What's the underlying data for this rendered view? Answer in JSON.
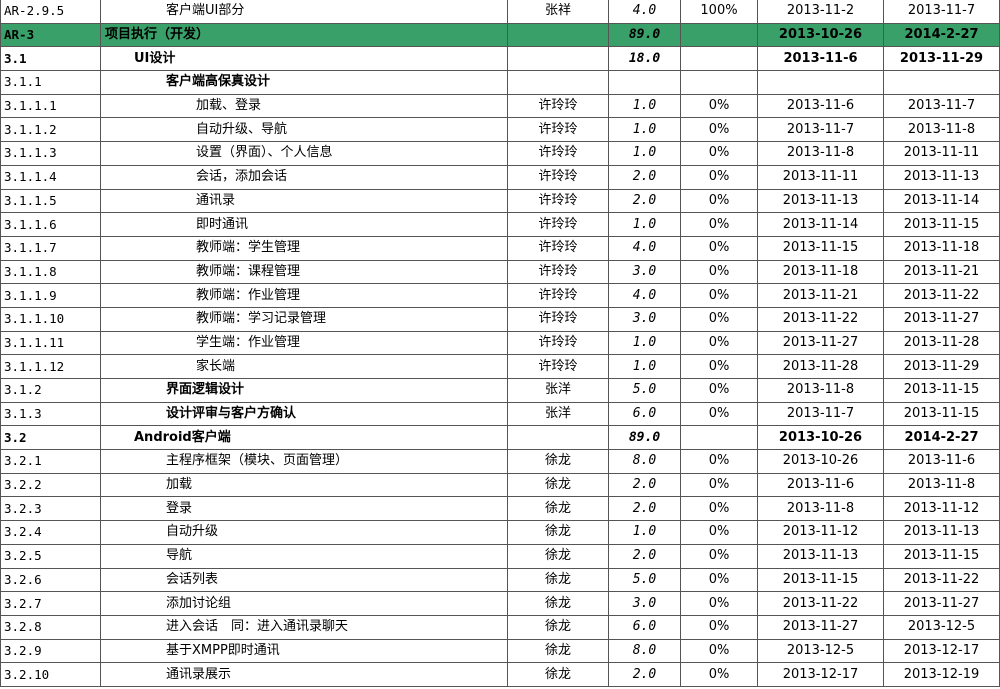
{
  "colors": {
    "summary_row": "#38a068"
  },
  "rows": [
    {
      "id": "AR-2.9.5",
      "task": "客户端UI部分",
      "level": 2,
      "owner": "张祥",
      "duration": "4.0",
      "progress": "100%",
      "start": "2013-11-2",
      "end": "2013-11-7"
    },
    {
      "id": "AR-3",
      "task": "项目执行（开发）",
      "level": 0,
      "owner": "",
      "duration": "89.0",
      "progress": "",
      "start": "2013-10-26",
      "end": "2014-2-27",
      "bold": true,
      "green": true
    },
    {
      "id": "3.1",
      "task": "UI设计",
      "level": 1,
      "owner": "",
      "duration": "18.0",
      "progress": "",
      "start": "2013-11-6",
      "end": "2013-11-29",
      "bold": true
    },
    {
      "id": "3.1.1",
      "task": "客户端高保真设计",
      "level": 2,
      "owner": "",
      "duration": "",
      "progress": "",
      "start": "",
      "end": "",
      "boldtask": true
    },
    {
      "id": "3.1.1.1",
      "task": "加载、登录",
      "level": 3,
      "owner": "许玲玲",
      "duration": "1.0",
      "progress": "0%",
      "start": "2013-11-6",
      "end": "2013-11-7"
    },
    {
      "id": "3.1.1.2",
      "task": "自动升级、导航",
      "level": 3,
      "owner": "许玲玲",
      "duration": "1.0",
      "progress": "0%",
      "start": "2013-11-7",
      "end": "2013-11-8"
    },
    {
      "id": "3.1.1.3",
      "task": "设置（界面）、个人信息",
      "level": 3,
      "owner": "许玲玲",
      "duration": "1.0",
      "progress": "0%",
      "start": "2013-11-8",
      "end": "2013-11-11"
    },
    {
      "id": "3.1.1.4",
      "task": "会话，添加会话",
      "level": 3,
      "owner": "许玲玲",
      "duration": "2.0",
      "progress": "0%",
      "start": "2013-11-11",
      "end": "2013-11-13"
    },
    {
      "id": "3.1.1.5",
      "task": "通讯录",
      "level": 3,
      "owner": "许玲玲",
      "duration": "2.0",
      "progress": "0%",
      "start": "2013-11-13",
      "end": "2013-11-14"
    },
    {
      "id": "3.1.1.6",
      "task": "即时通讯",
      "level": 3,
      "owner": "许玲玲",
      "duration": "1.0",
      "progress": "0%",
      "start": "2013-11-14",
      "end": "2013-11-15"
    },
    {
      "id": "3.1.1.7",
      "task": "教师端：学生管理",
      "level": 3,
      "owner": "许玲玲",
      "duration": "4.0",
      "progress": "0%",
      "start": "2013-11-15",
      "end": "2013-11-18"
    },
    {
      "id": "3.1.1.8",
      "task": "教师端：课程管理",
      "level": 3,
      "owner": "许玲玲",
      "duration": "3.0",
      "progress": "0%",
      "start": "2013-11-18",
      "end": "2013-11-21"
    },
    {
      "id": "3.1.1.9",
      "task": "教师端：作业管理",
      "level": 3,
      "owner": "许玲玲",
      "duration": "4.0",
      "progress": "0%",
      "start": "2013-11-21",
      "end": "2013-11-22"
    },
    {
      "id": "3.1.1.10",
      "task": "教师端：学习记录管理",
      "level": 3,
      "owner": "许玲玲",
      "duration": "3.0",
      "progress": "0%",
      "start": "2013-11-22",
      "end": "2013-11-27"
    },
    {
      "id": "3.1.1.11",
      "task": "学生端：作业管理",
      "level": 3,
      "owner": "许玲玲",
      "duration": "1.0",
      "progress": "0%",
      "start": "2013-11-27",
      "end": "2013-11-28"
    },
    {
      "id": "3.1.1.12",
      "task": "家长端",
      "level": 3,
      "owner": "许玲玲",
      "duration": "1.0",
      "progress": "0%",
      "start": "2013-11-28",
      "end": "2013-11-29"
    },
    {
      "id": "3.1.2",
      "task": "界面逻辑设计",
      "level": 2,
      "owner": "张洋",
      "duration": "5.0",
      "progress": "0%",
      "start": "2013-11-8",
      "end": "2013-11-15",
      "boldtask": true
    },
    {
      "id": "3.1.3",
      "task": "设计评审与客户方确认",
      "level": 2,
      "owner": "张洋",
      "duration": "6.0",
      "progress": "0%",
      "start": "2013-11-7",
      "end": "2013-11-15",
      "boldtask": true
    },
    {
      "id": "3.2",
      "task": "Android客户端",
      "level": 1,
      "owner": "",
      "duration": "89.0",
      "progress": "",
      "start": "2013-10-26",
      "end": "2014-2-27",
      "bold": true
    },
    {
      "id": "3.2.1",
      "task": "主程序框架（模块、页面管理）",
      "level": 2,
      "owner": "徐龙",
      "duration": "8.0",
      "progress": "0%",
      "start": "2013-10-26",
      "end": "2013-11-6"
    },
    {
      "id": "3.2.2",
      "task": "加载",
      "level": 2,
      "owner": "徐龙",
      "duration": "2.0",
      "progress": "0%",
      "start": "2013-11-6",
      "end": "2013-11-8"
    },
    {
      "id": "3.2.3",
      "task": "登录",
      "level": 2,
      "owner": "徐龙",
      "duration": "2.0",
      "progress": "0%",
      "start": "2013-11-8",
      "end": "2013-11-12"
    },
    {
      "id": "3.2.4",
      "task": "自动升级",
      "level": 2,
      "owner": "徐龙",
      "duration": "1.0",
      "progress": "0%",
      "start": "2013-11-12",
      "end": "2013-11-13"
    },
    {
      "id": "3.2.5",
      "task": "导航",
      "level": 2,
      "owner": "徐龙",
      "duration": "2.0",
      "progress": "0%",
      "start": "2013-11-13",
      "end": "2013-11-15"
    },
    {
      "id": "3.2.6",
      "task": "会话列表",
      "level": 2,
      "owner": "徐龙",
      "duration": "5.0",
      "progress": "0%",
      "start": "2013-11-15",
      "end": "2013-11-22"
    },
    {
      "id": "3.2.7",
      "task": "添加讨论组",
      "level": 2,
      "owner": "徐龙",
      "duration": "3.0",
      "progress": "0%",
      "start": "2013-11-22",
      "end": "2013-11-27"
    },
    {
      "id": "3.2.8",
      "task": "进入会话　同：进入通讯录聊天",
      "level": 2,
      "owner": "徐龙",
      "duration": "6.0",
      "progress": "0%",
      "start": "2013-11-27",
      "end": "2013-12-5"
    },
    {
      "id": "3.2.9",
      "task": "基于XMPP即时通讯",
      "level": 2,
      "owner": "徐龙",
      "duration": "8.0",
      "progress": "0%",
      "start": "2013-12-5",
      "end": "2013-12-17"
    },
    {
      "id": "3.2.10",
      "task": "通讯录展示",
      "level": 2,
      "owner": "徐龙",
      "duration": "2.0",
      "progress": "0%",
      "start": "2013-12-17",
      "end": "2013-12-19"
    }
  ]
}
